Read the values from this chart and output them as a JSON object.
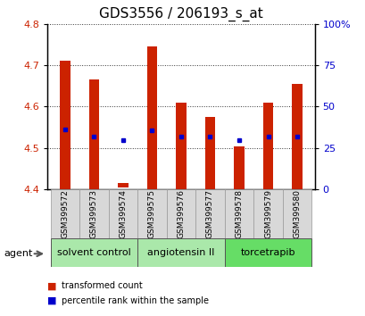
{
  "title": "GDS3556 / 206193_s_at",
  "samples": [
    "GSM399572",
    "GSM399573",
    "GSM399574",
    "GSM399575",
    "GSM399576",
    "GSM399577",
    "GSM399578",
    "GSM399579",
    "GSM399580"
  ],
  "bar_bottom": [
    4.4,
    4.4,
    4.405,
    4.4,
    4.4,
    4.4,
    4.4,
    4.4,
    4.4
  ],
  "bar_top": [
    4.71,
    4.665,
    4.415,
    4.745,
    4.61,
    4.575,
    4.505,
    4.61,
    4.655
  ],
  "blue_dot_y": [
    4.545,
    4.528,
    4.52,
    4.542,
    4.527,
    4.527,
    4.52,
    4.527,
    4.527
  ],
  "blue_dot_show": [
    true,
    true,
    true,
    true,
    true,
    true,
    true,
    true,
    true
  ],
  "bar_color": "#cc2200",
  "dot_color": "#0000cc",
  "ylim_left": [
    4.4,
    4.8
  ],
  "ylim_right": [
    0,
    100
  ],
  "yticks_left": [
    4.4,
    4.5,
    4.6,
    4.7,
    4.8
  ],
  "yticks_right": [
    0,
    25,
    50,
    75,
    100
  ],
  "ytick_labels_right": [
    "0",
    "25",
    "50",
    "75",
    "100%"
  ],
  "groups": [
    {
      "label": "solvent control",
      "indices": [
        0,
        1,
        2
      ],
      "color": "#aae8aa"
    },
    {
      "label": "angiotensin II",
      "indices": [
        3,
        4,
        5
      ],
      "color": "#aae8aa"
    },
    {
      "label": "torcetrapib",
      "indices": [
        6,
        7,
        8
      ],
      "color": "#66dd66"
    }
  ],
  "legend_transformed": "transformed count",
  "legend_percentile": "percentile rank within the sample",
  "agent_label": "agent",
  "bar_width": 0.35,
  "grid_color": "#000000",
  "bg_color": "#ffffff",
  "plot_bg_color": "#ffffff",
  "tick_label_color_left": "#cc2200",
  "tick_label_color_right": "#0000cc",
  "title_fontsize": 11,
  "tick_fontsize": 8,
  "label_fontsize": 7
}
